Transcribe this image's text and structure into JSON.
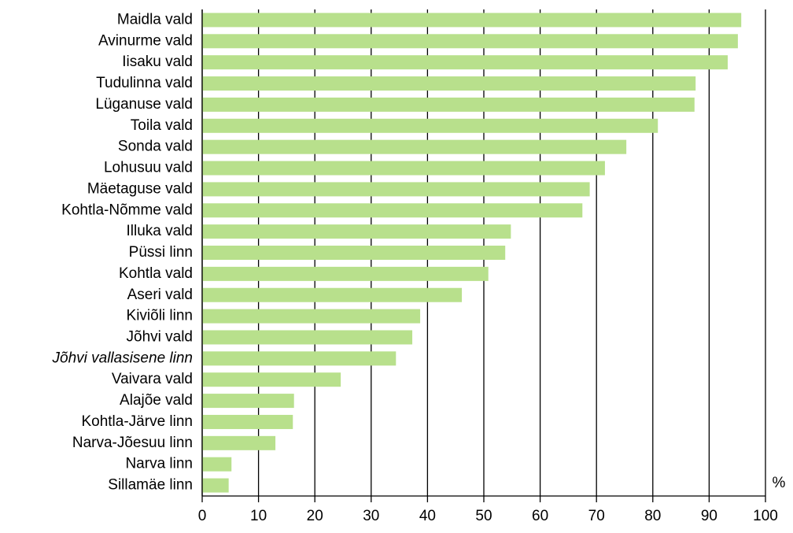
{
  "chart_data": {
    "type": "barh",
    "categories": [
      "Maidla vald",
      "Avinurme vald",
      "Iisaku vald",
      "Tudulinna vald",
      "Lüganuse vald",
      "Toila vald",
      "Sonda vald",
      "Lohusuu vald",
      "Mäetaguse vald",
      "Kohtla-Nõmme vald",
      "Illuka vald",
      "Püssi linn",
      "Kohtla vald",
      "Aseri vald",
      "Kiviõli linn",
      "Jõhvi vald",
      "Jõhvi vallasisene linn",
      "Vaivara vald",
      "Alajõe vald",
      "Kohtla-Järve linn",
      "Narva-Jõesuu linn",
      "Narva linn",
      "Sillamäe linn"
    ],
    "values": [
      95.7,
      95.1,
      93.3,
      87.6,
      87.4,
      80.9,
      75.3,
      71.5,
      68.8,
      67.5,
      54.8,
      53.8,
      50.8,
      46.1,
      38.7,
      37.3,
      34.4,
      24.6,
      16.3,
      16.1,
      13,
      5.2,
      4.7
    ],
    "italic_indices": [
      16
    ],
    "color": "#b8e08c",
    "xlabel": "%",
    "xlim": [
      0,
      100
    ],
    "xticks": [
      0,
      10,
      20,
      30,
      40,
      50,
      60,
      70,
      80,
      90,
      100
    ],
    "grid": true
  }
}
